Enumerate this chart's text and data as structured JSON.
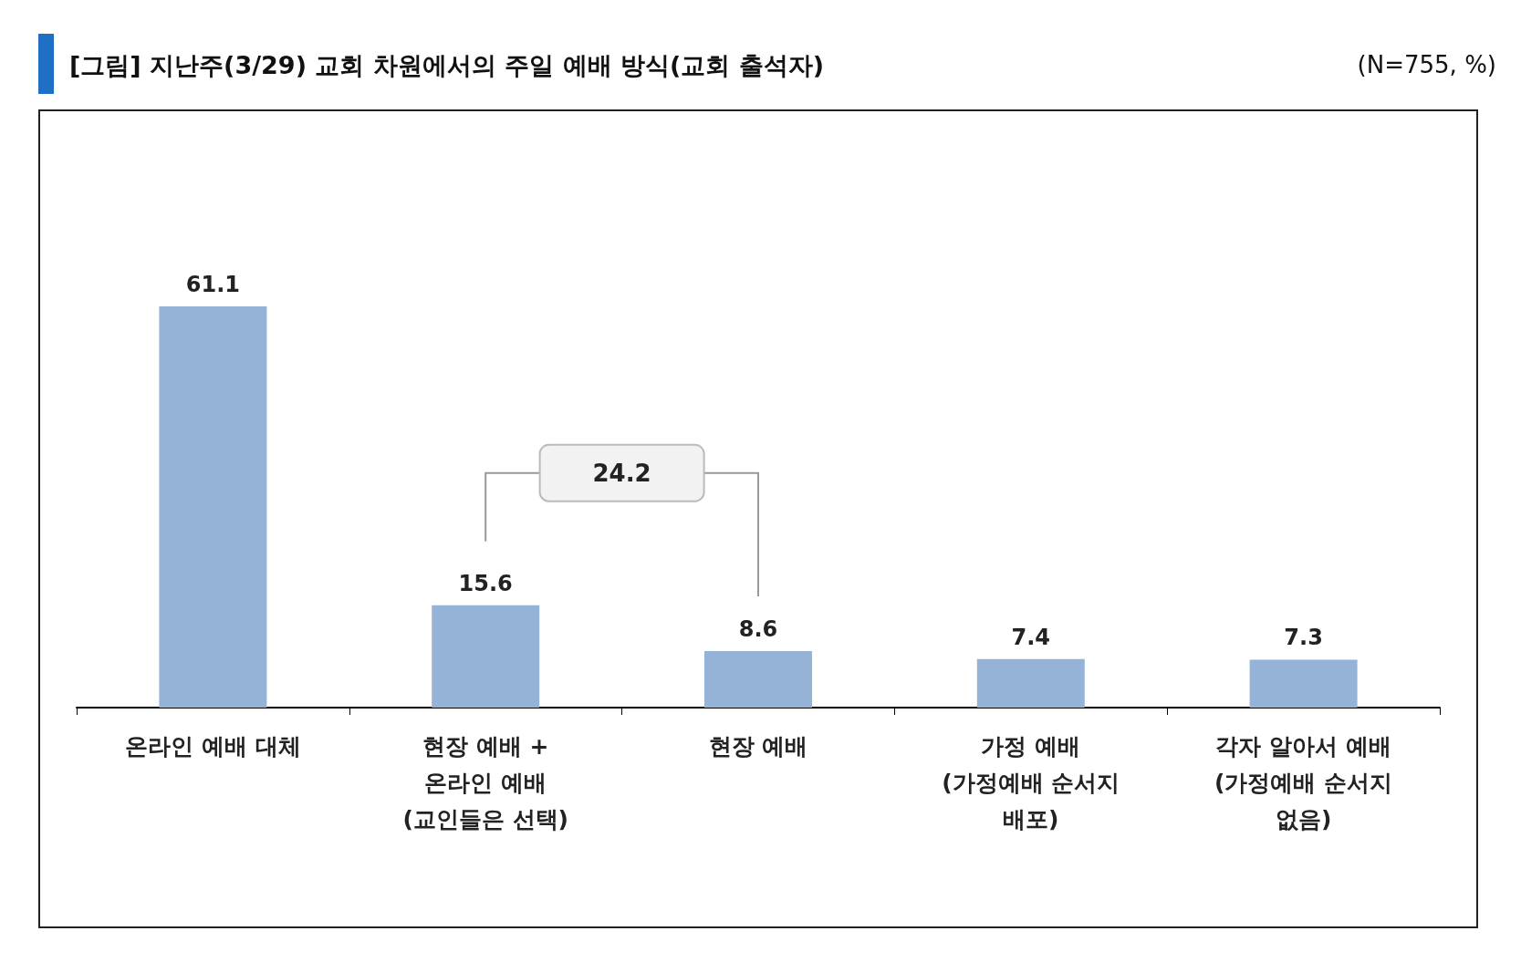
{
  "chart_data": {
    "type": "bar",
    "title": "[그림] 지난주(3/29) 교회 차원에서의 주일 예배 방식(교회 출석자)",
    "subtitle": "(N=755, %)",
    "categories": [
      "온라인 예배 대체",
      "현장 예배 +\n온라인 예배\n(교인들은 선택)",
      "현장 예배",
      "가정 예배\n(가정예배 순서지\n배포)",
      "각자 알아서 예배\n(가정예배 순서지\n없음)"
    ],
    "values": [
      61.1,
      15.6,
      8.6,
      7.4,
      7.3
    ],
    "color": "#95b3d7",
    "data_labels": true,
    "annotations": [
      "24.2"
    ]
  }
}
